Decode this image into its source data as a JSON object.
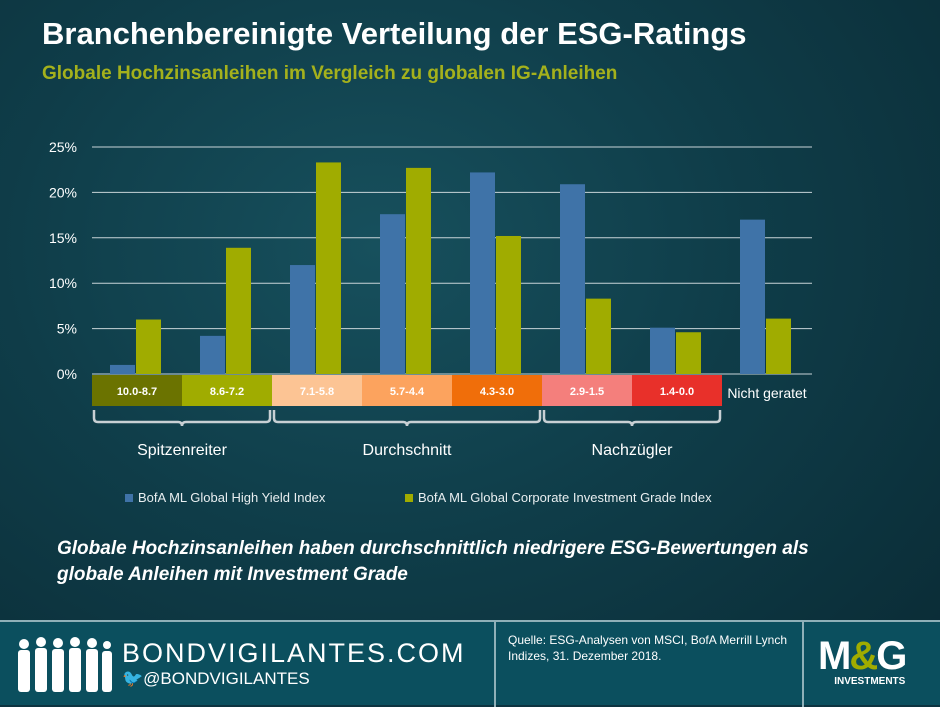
{
  "title": "Branchenbereinigte Verteilung der ESG-Ratings",
  "subtitle": "Globale Hochzinsanleihen im Vergleich zu globalen IG-Anleihen",
  "chart_data": {
    "type": "bar",
    "categories": [
      "10.0-8.7",
      "8.6-7.2",
      "7.1-5.8",
      "5.7-4.4",
      "4.3-3.0",
      "2.9-1.5",
      "1.4-0.0",
      "Nicht geratet"
    ],
    "category_colors": [
      "#6b7300",
      "#a0ac00",
      "#fcc494",
      "#fca35e",
      "#f06e0a",
      "#f47f7c",
      "#e8302a",
      null
    ],
    "series": [
      {
        "name": "BofA ML Global High Yield Index",
        "color": "#3f73a8",
        "values": [
          1.0,
          4.2,
          12.0,
          17.6,
          22.2,
          20.9,
          5.1,
          17.0
        ]
      },
      {
        "name": "BofA ML Global Corporate Investment Grade Index",
        "color": "#a0ac00",
        "values": [
          6.0,
          13.9,
          23.3,
          22.7,
          15.2,
          8.3,
          4.6,
          6.1
        ]
      }
    ],
    "yticks": [
      "0%",
      "5%",
      "10%",
      "15%",
      "20%",
      "25%"
    ],
    "ylim": [
      0,
      25
    ],
    "grid": true,
    "groups": [
      "Spitzenreiter",
      "Durchschnitt",
      "Nachzügler"
    ],
    "legend_position": "bottom"
  },
  "note": "Globale Hochzinsanleihen haben durchschnittlich niedrigere ESG-Bewertungen als globale Anleihen mit Investment Grade",
  "footer": {
    "site": "BONDVIGILANTES.COM",
    "twitter": "@BONDVIGILANTES",
    "source": "Quelle: ESG-Analysen von MSCI, BofA Merrill Lynch Indizes, 31. Dezember 2018.",
    "logo": "M&G",
    "logo_sub": "INVESTMENTS"
  }
}
